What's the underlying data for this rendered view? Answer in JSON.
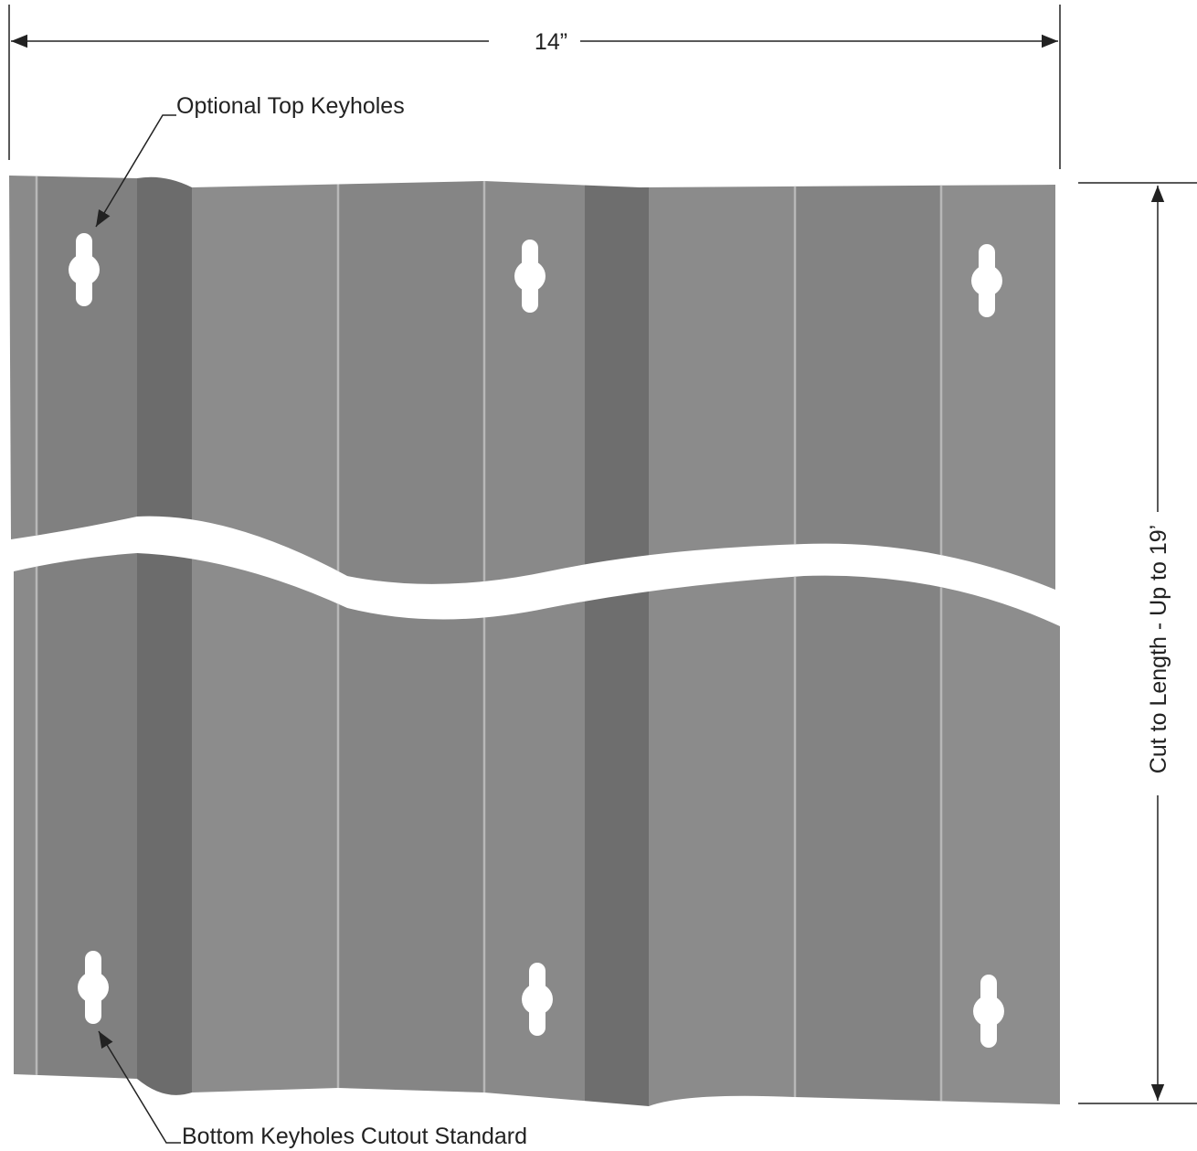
{
  "dimensions": {
    "width": {
      "label": "14”"
    },
    "length": {
      "label": "Cut to Length - Up to 19’"
    }
  },
  "callouts": [
    {
      "label": "Optional Top Keyholes"
    },
    {
      "label": "Bottom Keyholes Cutout Standard"
    }
  ]
}
